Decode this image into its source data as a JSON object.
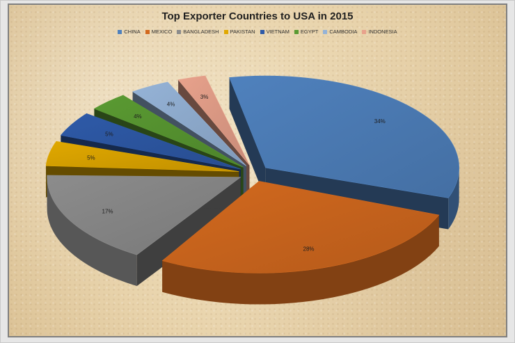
{
  "chart_data": {
    "type": "pie",
    "title": "Top Exporter Countries to USA in 2015",
    "legend_position": "top",
    "categories": [
      "CHINA",
      "MEXICO",
      "BANGLADESH",
      "PAKISTAN",
      "VIETNAM",
      "EGYPT",
      "CAMBODIA",
      "INDONESIA"
    ],
    "values": [
      34,
      28,
      17,
      5,
      5,
      4,
      4,
      3
    ],
    "labels": [
      "34%",
      "28%",
      "17%",
      "5%",
      "5%",
      "4%",
      "4%",
      "3%"
    ],
    "colors": [
      "#4f81bd",
      "#d2691e",
      "#8c8c8c",
      "#e0a800",
      "#2e5aa8",
      "#5a9a32",
      "#95b3d7",
      "#e8a28c"
    ],
    "style": "3D exploded pie"
  }
}
